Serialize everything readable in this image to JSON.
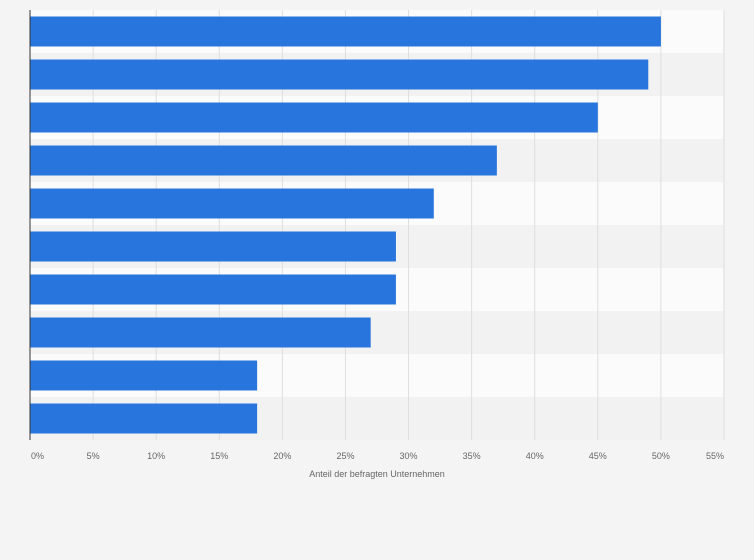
{
  "chart_data": {
    "type": "bar",
    "orientation": "horizontal",
    "categories": [
      "",
      "",
      "",
      "",
      "",
      "",
      "",
      "",
      "",
      ""
    ],
    "values": [
      50,
      49,
      45,
      37,
      32,
      29,
      29,
      27,
      18,
      18
    ],
    "xlabel": "Anteil der befragten Unternehmen",
    "xlim": [
      0,
      55
    ],
    "ticks": [
      "0%",
      "5%",
      "10%",
      "15%",
      "20%",
      "25%",
      "30%",
      "35%",
      "40%",
      "45%",
      "50%",
      "55%"
    ],
    "grid": true,
    "legend": "none",
    "colors": {
      "bar": "#2876dd",
      "band_light": "#fbfbfb",
      "band_dark": "#f2f2f3",
      "grid": "#dedede",
      "axis": "#333333",
      "text": "#666666",
      "background": "#f4f4f5"
    }
  }
}
